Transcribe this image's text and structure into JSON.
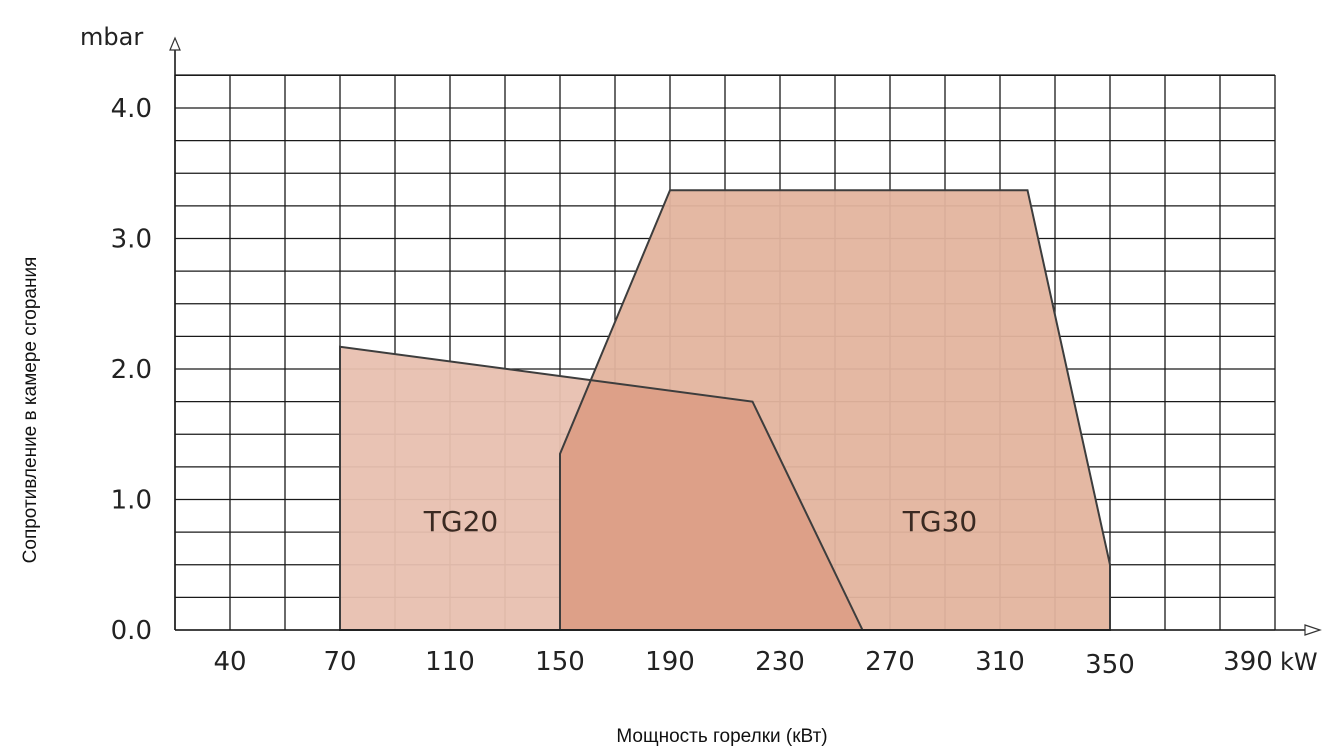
{
  "chart_data": {
    "type": "area",
    "xlabel": "Мощность горелки (кВт)",
    "ylabel": "Сопротивление в камере сгорания",
    "x_unit": "kW",
    "y_unit": "mbar",
    "x_ticks": [
      40,
      70,
      110,
      150,
      190,
      230,
      270,
      310,
      350,
      390
    ],
    "x_tick_labels": [
      "40",
      "70",
      "110",
      "150",
      "190",
      "230",
      "270",
      "310",
      "350",
      "390"
    ],
    "y_ticks": [
      0.0,
      1.0,
      2.0,
      3.0,
      4.0
    ],
    "y_tick_labels": [
      "0.0",
      "1.0",
      "2.0",
      "3.0",
      "4.0"
    ],
    "ylim": [
      0,
      4.25
    ],
    "grid": true,
    "series": [
      {
        "name": "TG20",
        "color": "#e8c0b0",
        "x": [
          70,
          70,
          220,
          260
        ],
        "y": [
          0,
          2.17,
          1.75,
          0
        ]
      },
      {
        "name": "TG30",
        "color": "#e3b49e",
        "x": [
          150,
          150,
          190,
          320,
          350,
          350
        ],
        "y": [
          0,
          1.35,
          3.37,
          3.37,
          0.5,
          0
        ]
      }
    ],
    "overlap_color": "#dda088"
  }
}
